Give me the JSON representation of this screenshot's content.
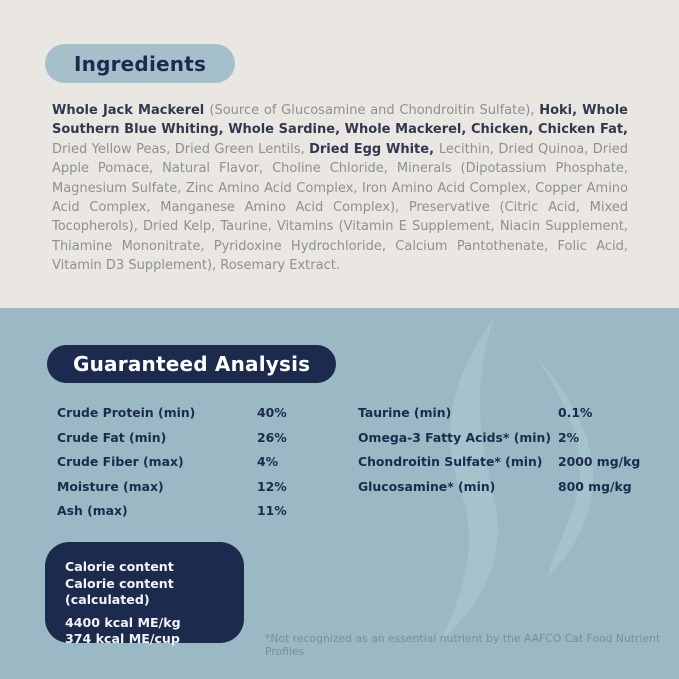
{
  "theme": {
    "bg-top": "#eae6e1",
    "bg-blue": "#9ab9c5",
    "pill-blue": "#a5c0cb",
    "navy": "#1c2b4d",
    "gray-text": "#8d9095",
    "bold-text": "#323850",
    "footnote": "#7b8d98",
    "watermark": "#a6c2cd"
  },
  "ingredients": {
    "title": "Ingredients",
    "segments": [
      {
        "text": "Whole Jack Mackerel ",
        "bold": true
      },
      {
        "text": "(Source of Glucosamine and Chondroitin Sulfate), ",
        "bold": false
      },
      {
        "text": "Hoki, Whole Southern Blue Whiting, Whole Sardine, Whole Mackerel, Chicken, Chicken Fat, ",
        "bold": true
      },
      {
        "text": "Dried Yellow Peas, Dried Green Lentils, ",
        "bold": false
      },
      {
        "text": "Dried Egg White, ",
        "bold": true
      },
      {
        "text": "Lecithin, Dried Quinoa, Dried Apple Pomace, Natural Flavor, Choline Chloride, Minerals (Dipotassium Phosphate, Magnesium Sulfate, Zinc Amino Acid Complex, Iron Amino Acid Complex, Copper Amino Acid Complex, Manganese Amino Acid Complex), Preservative (Citric Acid, Mixed Tocopherols), Dried Kelp, Taurine, Vitamins (Vitamin E Supplement, Niacin Supplement, Thiamine Mononitrate, Pyridoxine Hydrochloride, Calcium Pantothenate, Folic Acid, Vitamin D3 Supplement), Rosemary Extract.",
        "bold": false
      }
    ]
  },
  "analysis": {
    "title": "Guaranteed Analysis",
    "left_rows": [
      {
        "label": "Crude Protein (min)",
        "value": "40%"
      },
      {
        "label": "Crude Fat (min)",
        "value": "26%"
      },
      {
        "label": "Crude Fiber (max)",
        "value": "4%"
      },
      {
        "label": "Moisture (max)",
        "value": "12%"
      },
      {
        "label": "Ash (max)",
        "value": "11%"
      }
    ],
    "right_rows": [
      {
        "label": "Taurine (min)",
        "value": "0.1%"
      },
      {
        "label": "Omega-3 Fatty Acids* (min)",
        "value": "2%"
      },
      {
        "label": "Chondroitin Sulfate* (min)",
        "value": "2000 mg/kg"
      },
      {
        "label": "Glucosamine* (min)",
        "value": "800 mg/kg"
      }
    ],
    "footnote": "*Not recognized as an essential nutrient by the AAFCO Cat Food Nutrient Profiles"
  },
  "calories": {
    "header_lines": [
      "Calorie content",
      "Calorie content (calculated)"
    ],
    "value_lines": [
      "4400 kcal ME/kg",
      "374 kcal ME/cup"
    ]
  }
}
